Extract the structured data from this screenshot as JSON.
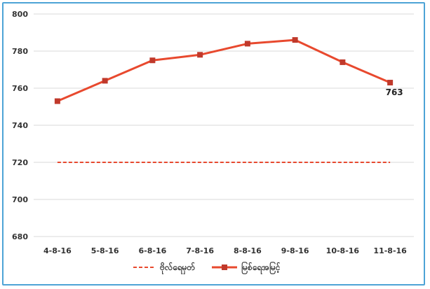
{
  "chart_data": {
    "type": "line",
    "categories": [
      "4-8-16",
      "5-8-16",
      "6-8-16",
      "7-8-16",
      "8-8-16",
      "9-8-16",
      "10-8-16",
      "11-8-16"
    ],
    "series": [
      {
        "name": "ဗိုလ်ရေမှတ်",
        "values": [
          720,
          720,
          720,
          720,
          720,
          720,
          720,
          720
        ],
        "color": "#e8492e",
        "style": "dashed"
      },
      {
        "name": "မြစ်ရေအမြင့်",
        "values": [
          753,
          764,
          775,
          778,
          784,
          786,
          774,
          763
        ],
        "color": "#e8492e",
        "style": "solid-marker"
      }
    ],
    "data_labels": [
      {
        "series": 1,
        "index": 7,
        "text": "763"
      }
    ],
    "yticks": [
      "800",
      "780",
      "760",
      "740",
      "720",
      "700",
      "680"
    ],
    "ylim": [
      680,
      800
    ],
    "grid": true,
    "legend_position": "bottom"
  }
}
